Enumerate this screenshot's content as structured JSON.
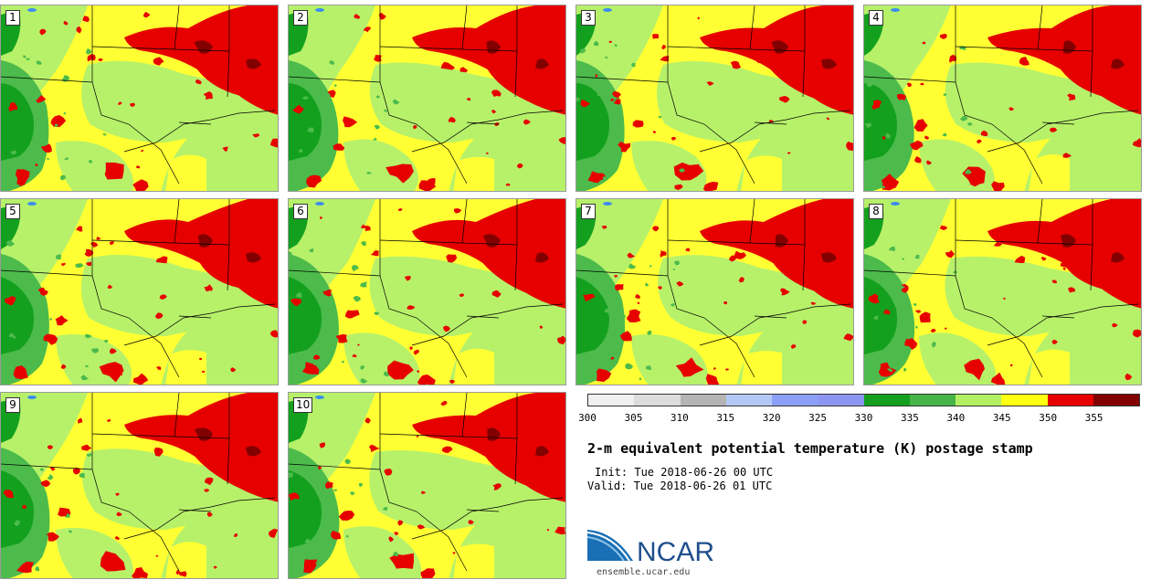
{
  "figure": {
    "title": "2-m equivalent potential temperature (K) postage stamp",
    "init": "Init: Tue 2018-06-26 00 UTC",
    "valid": "Valid: Tue 2018-06-26 01 UTC"
  },
  "members": [
    "1",
    "2",
    "3",
    "4",
    "5",
    "6",
    "7",
    "8",
    "9",
    "10"
  ],
  "colorbar": {
    "ticks": [
      "300",
      "305",
      "310",
      "315",
      "320",
      "325",
      "330",
      "335",
      "340",
      "345",
      "350",
      "355"
    ],
    "colors": [
      "#f0f0f0",
      "#dcdcdc",
      "#b4b4b4",
      "#b4c8f8",
      "#8ca0f8",
      "#8c96f0",
      "#14a01e",
      "#46b446",
      "#b4f064",
      "#ffff14",
      "#e60000",
      "#820000"
    ]
  },
  "map_palette": {
    "background": "#ffff33",
    "light_green": "#b7f16a",
    "green": "#4cbb4c",
    "dark_green": "#13a01e",
    "red": "#e60000",
    "dark_red": "#820000",
    "water": "#3c8cf0",
    "outline": "#000000"
  },
  "logo": {
    "text": "NCAR",
    "url": "ensemble.ucar.edu"
  }
}
